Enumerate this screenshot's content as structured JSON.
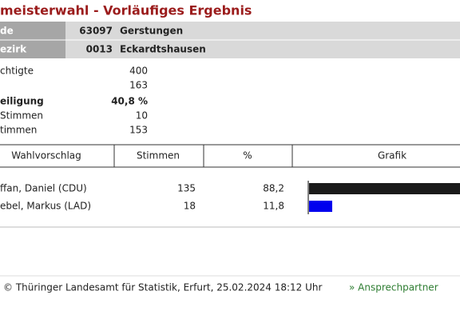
{
  "header": {
    "title": "meisterwahl - Vorläufiges Ergebnis"
  },
  "region": [
    {
      "label": "de",
      "code": "63097",
      "name": "Gerstungen"
    },
    {
      "label": "ezirk",
      "code": "0013",
      "name": "Eckardtshausen"
    }
  ],
  "stats": [
    {
      "label": "chtigte",
      "value": "400"
    },
    {
      "label": "",
      "value": "163"
    },
    {
      "label": "eiligung",
      "value": "40,8 %"
    },
    {
      "label": "Stimmen",
      "value": "10"
    },
    {
      "label": "timmen",
      "value": "153"
    }
  ],
  "table": {
    "headers": [
      "Wahlvorschlag",
      "Stimmen",
      "%",
      "Grafik"
    ],
    "rows": [
      {
        "name": "ffan, Daniel (CDU)",
        "votes": "135",
        "percent": {
          "value": 88.2,
          "label": "88,2"
        },
        "color": "#1a1a1a"
      },
      {
        "name": "ebel, Markus (LAD)",
        "votes": "18",
        "percent": {
          "value": 11.8,
          "label": "11,8"
        },
        "color": "#0000ee"
      }
    ]
  },
  "footer": {
    "text": "© Thüringer Landesamt für Statistik, Erfurt, 25.02.2024 18:12 Uhr",
    "link": "» Ansprechpartner"
  }
}
